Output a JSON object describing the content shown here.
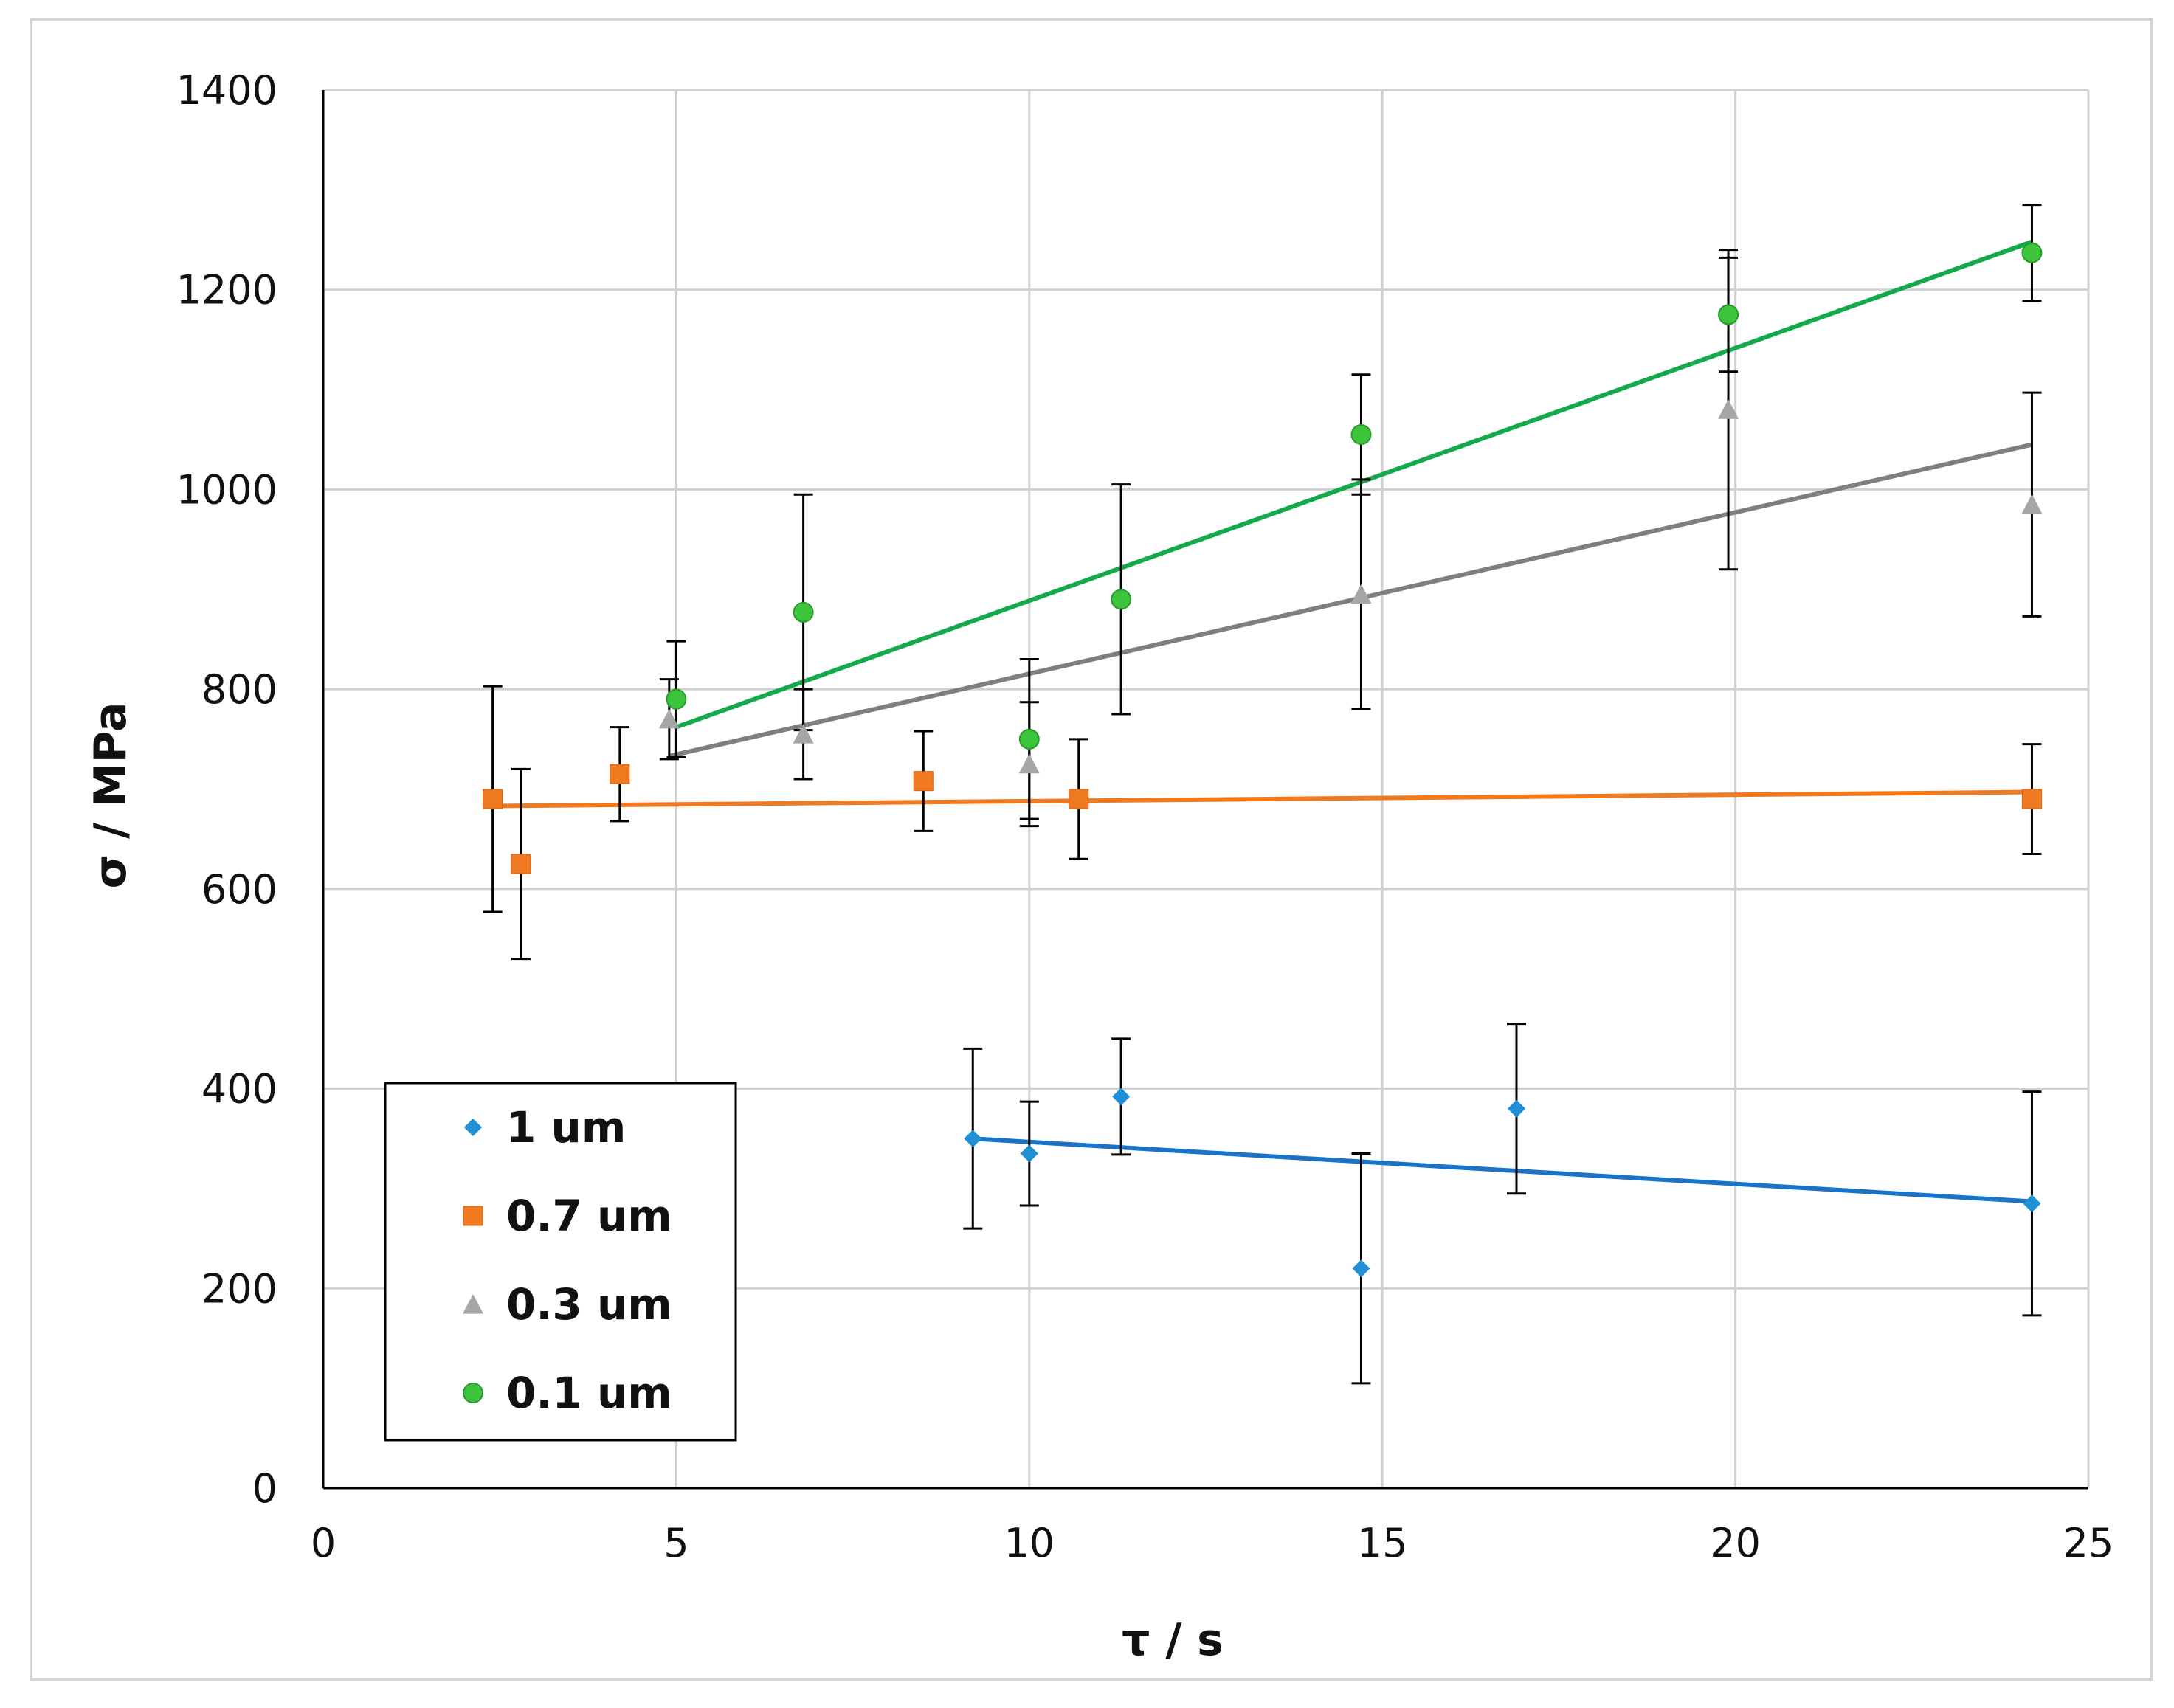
{
  "chart_data": {
    "type": "scatter",
    "title": "",
    "xlabel": "τ / s",
    "ylabel": "σ / MPa",
    "xlim": [
      0,
      25
    ],
    "ylim": [
      0,
      1400
    ],
    "xticks": [
      0,
      5,
      10,
      15,
      20,
      25
    ],
    "yticks": [
      0,
      200,
      400,
      600,
      800,
      1000,
      1200,
      1400
    ],
    "grid": true,
    "legend_position": "bottom-left",
    "series": [
      {
        "name": "1 um",
        "color": "#1f8fd6",
        "line_color": "#1a73c9",
        "marker": "diamond",
        "points": [
          {
            "x": 9.2,
            "y": 350,
            "err": 90
          },
          {
            "x": 10.0,
            "y": 335,
            "err": 52
          },
          {
            "x": 11.3,
            "y": 392,
            "err": 58
          },
          {
            "x": 14.7,
            "y": 220,
            "err": 115
          },
          {
            "x": 16.9,
            "y": 380,
            "err": 85
          },
          {
            "x": 24.2,
            "y": 285,
            "err": 112
          }
        ],
        "trend": {
          "x": [
            9.2,
            24.2
          ],
          "y": [
            350,
            287
          ]
        }
      },
      {
        "name": "0.7 um",
        "color": "#f07a22",
        "line_color": "#f07a22",
        "marker": "square",
        "points": [
          {
            "x": 2.4,
            "y": 690,
            "err": 113
          },
          {
            "x": 2.8,
            "y": 625,
            "err": 95
          },
          {
            "x": 4.2,
            "y": 715,
            "err": 47
          },
          {
            "x": 8.5,
            "y": 708,
            "err": 50
          },
          {
            "x": 10.7,
            "y": 690,
            "err": 60
          },
          {
            "x": 24.2,
            "y": 690,
            "err": 55
          }
        ],
        "trend": {
          "x": [
            2.4,
            24.2
          ],
          "y": [
            683,
            697
          ]
        }
      },
      {
        "name": "0.3 um",
        "color": "#a6a6a6",
        "line_color": "#7f7f7f",
        "marker": "triangle",
        "points": [
          {
            "x": 4.9,
            "y": 770,
            "err": 40
          },
          {
            "x": 6.8,
            "y": 755,
            "err": 45
          },
          {
            "x": 10.0,
            "y": 725,
            "err": 62
          },
          {
            "x": 14.7,
            "y": 895,
            "err": 115
          },
          {
            "x": 19.9,
            "y": 1080,
            "err": 160
          },
          {
            "x": 24.2,
            "y": 985,
            "err": 112
          }
        ],
        "trend": {
          "x": [
            4.9,
            24.2
          ],
          "y": [
            733,
            1045
          ]
        }
      },
      {
        "name": "0.1 um",
        "color": "#3cc43c",
        "line_color": "#14aa4c",
        "marker": "circle",
        "points": [
          {
            "x": 5.0,
            "y": 790,
            "err": 58
          },
          {
            "x": 6.8,
            "y": 877,
            "err": 118
          },
          {
            "x": 10.0,
            "y": 750,
            "err": 80
          },
          {
            "x": 11.3,
            "y": 890,
            "err": 115
          },
          {
            "x": 14.7,
            "y": 1055,
            "err": 60
          },
          {
            "x": 19.9,
            "y": 1175,
            "err": 57
          },
          {
            "x": 24.2,
            "y": 1237,
            "err": 48
          }
        ],
        "trend": {
          "x": [
            5.0,
            24.2
          ],
          "y": [
            762,
            1248
          ]
        }
      }
    ]
  }
}
